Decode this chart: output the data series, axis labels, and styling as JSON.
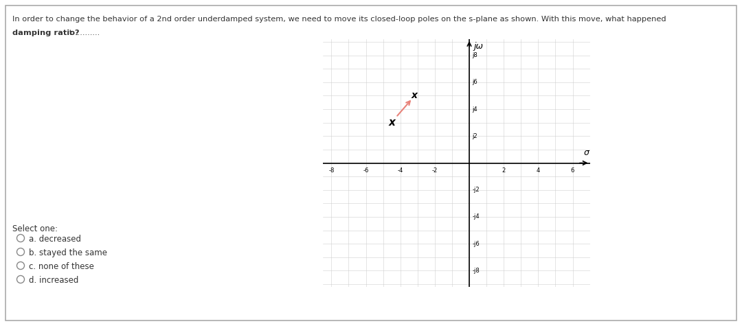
{
  "question_text_line1": "In order to change the behavior of a 2nd order underdamped system, we need to move its closed-loop poles on the s-plane as shown. With this move, what happened",
  "question_bold": "damping ratio?",
  "question_normal": " it ..........",
  "select_label": "Select one:",
  "options": [
    "a. decreased",
    "b. stayed the same",
    "c. none of these",
    "d. increased"
  ],
  "bg_color": "#ffffff",
  "border_color": "#aaaaaa",
  "text_color": "#333333",
  "grid_color": "#cccccc",
  "axis_color": "#000000",
  "x_ticks": [
    -8,
    -6,
    -4,
    -2,
    2,
    4,
    6
  ],
  "y_ticks_pos": [
    2,
    4,
    6,
    8
  ],
  "y_ticks_neg": [
    2,
    4,
    6,
    8
  ],
  "pole_old_x": -4.5,
  "pole_old_y": 3.0,
  "pole_new_x": -3.2,
  "pole_new_y": 5.0,
  "arrow_color": "#e8837a",
  "pole_color": "#000000",
  "jomega_label": "jω",
  "sigma_label": "σ"
}
